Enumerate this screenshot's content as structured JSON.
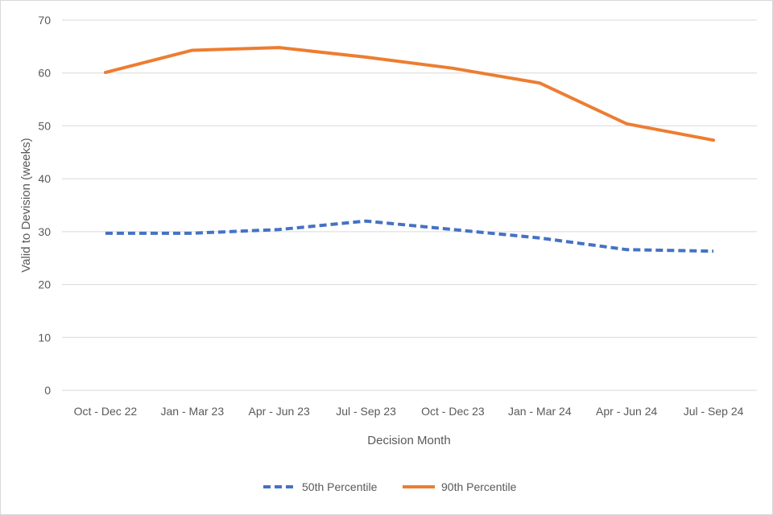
{
  "chart_data": {
    "type": "line",
    "title": "",
    "xlabel": "Decision Month",
    "ylabel": "Valid to Devision (weeks)",
    "ylim": [
      0,
      70
    ],
    "yticks": [
      "0",
      "10",
      "20",
      "30",
      "40",
      "50",
      "60",
      "70"
    ],
    "categories": [
      "Oct - Dec 22",
      "Jan - Mar 23",
      "Apr - Jun 23",
      "Jul - Sep 23",
      "Oct - Dec 23",
      "Jan - Mar 24",
      "Apr - Jun 24",
      "Jul - Sep 24"
    ],
    "grid": true,
    "legend_position": "bottom",
    "series": [
      {
        "name": "50th Percentile",
        "color": "#4472C4",
        "style": "dashed",
        "values": [
          29.7,
          29.7,
          30.4,
          32.0,
          30.4,
          28.8,
          26.6,
          26.3
        ]
      },
      {
        "name": "90th Percentile",
        "color": "#ED7D31",
        "style": "solid",
        "values": [
          60.1,
          64.3,
          64.8,
          63.0,
          60.9,
          58.1,
          50.4,
          47.3
        ]
      }
    ]
  }
}
